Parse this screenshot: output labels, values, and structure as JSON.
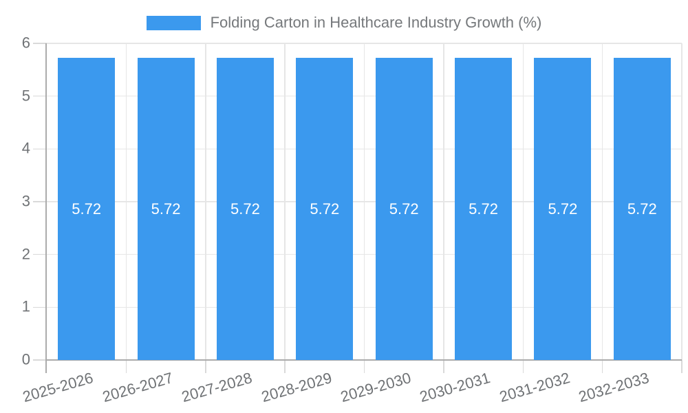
{
  "legend": {
    "label": "Folding Carton in Healthcare Industry Growth (%)"
  },
  "colors": {
    "bar": "#3B99EE",
    "axis_line": "#ABABAB",
    "gridline": "#E6E6E6",
    "tick": "#D9D9D9",
    "axis_text": "#6F7275",
    "legend_text": "#75787B",
    "bar_value_text": "#FFFFFF",
    "background": "#FFFFFF"
  },
  "chart_data": {
    "type": "bar",
    "title": "Folding Carton in Healthcare Industry Growth (%)",
    "categories": [
      "2025-2026",
      "2026-2027",
      "2027-2028",
      "2028-2029",
      "2029-2030",
      "2030-2031",
      "2031-2032",
      "2032-2033"
    ],
    "values": [
      5.72,
      5.72,
      5.72,
      5.72,
      5.72,
      5.72,
      5.72,
      5.72
    ],
    "value_labels": [
      "5.72",
      "5.72",
      "5.72",
      "5.72",
      "5.72",
      "5.72",
      "5.72",
      "5.72"
    ],
    "xlabel": "",
    "ylabel": "",
    "ylim": [
      0,
      6
    ],
    "yticks": [
      0,
      1,
      2,
      3,
      4,
      5,
      6
    ],
    "grid": true,
    "legend_position": "top",
    "bar_label_position": "center"
  }
}
